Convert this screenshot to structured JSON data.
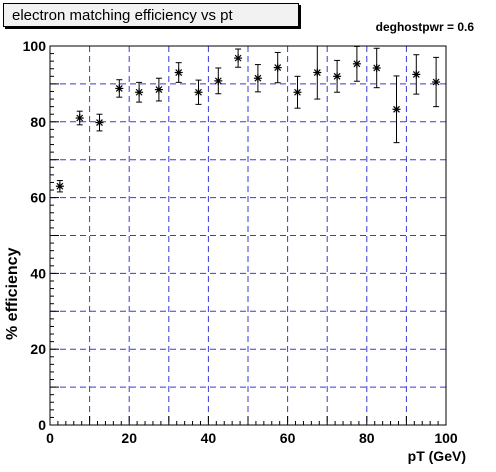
{
  "title": "electron matching efficiency vs pt",
  "annotation": "deghostpwr = 0.6",
  "chart_data": {
    "type": "scatter",
    "title": "electron matching efficiency vs pt",
    "xlabel": "pT (GeV)",
    "ylabel": "% efficiency",
    "xlim": [
      0,
      100
    ],
    "ylim": [
      0,
      100
    ],
    "x_ticks": [
      0,
      20,
      40,
      60,
      80,
      100
    ],
    "y_ticks": [
      0,
      20,
      40,
      60,
      80,
      100
    ],
    "grid": true,
    "marker": "star",
    "points": [
      {
        "x": 2.5,
        "y": 63.0,
        "err": 1.5
      },
      {
        "x": 7.5,
        "y": 81.0,
        "err": 1.8
      },
      {
        "x": 12.5,
        "y": 79.8,
        "err": 2.2
      },
      {
        "x": 17.5,
        "y": 88.8,
        "err": 2.3
      },
      {
        "x": 22.5,
        "y": 87.8,
        "err": 2.6
      },
      {
        "x": 27.5,
        "y": 88.5,
        "err": 3.0
      },
      {
        "x": 32.5,
        "y": 93.0,
        "err": 2.6
      },
      {
        "x": 37.5,
        "y": 87.8,
        "err": 3.2
      },
      {
        "x": 42.5,
        "y": 90.8,
        "err": 3.4
      },
      {
        "x": 47.5,
        "y": 96.8,
        "err": 2.4
      },
      {
        "x": 52.5,
        "y": 91.5,
        "err": 3.6
      },
      {
        "x": 57.5,
        "y": 94.3,
        "err": 4.0
      },
      {
        "x": 62.5,
        "y": 87.8,
        "err": 4.2
      },
      {
        "x": 67.5,
        "y": 93.0,
        "err": 7.0
      },
      {
        "x": 72.5,
        "y": 92.0,
        "err": 4.2
      },
      {
        "x": 77.5,
        "y": 95.3,
        "err": 4.6
      },
      {
        "x": 82.5,
        "y": 94.2,
        "err": 5.2
      },
      {
        "x": 87.5,
        "y": 83.3,
        "err": 8.8
      },
      {
        "x": 92.5,
        "y": 92.5,
        "err": 5.2
      },
      {
        "x": 97.5,
        "y": 90.5,
        "err": 6.5
      }
    ]
  }
}
